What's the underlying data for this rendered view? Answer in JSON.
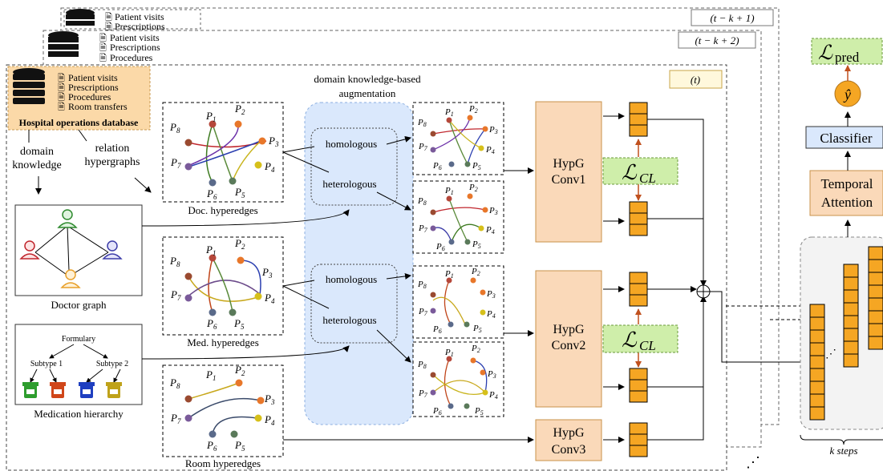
{
  "frames": [
    {
      "label": "(t − k + 1)",
      "items": [
        "Patient visits",
        "Prescriptions"
      ]
    },
    {
      "label": "(t − k + 2)",
      "items": [
        "Patient visits",
        "Prescriptions",
        "Procedures"
      ]
    },
    {
      "label": "(t)",
      "items": [
        "Patient visits",
        "Prescriptions",
        "Procedures",
        "Room transfers"
      ]
    }
  ],
  "database": {
    "title": "Hospital operations database"
  },
  "inputs": {
    "domain_knowledge": [
      "domain",
      "knowledge"
    ],
    "relation_hypergraphs": [
      "relation",
      "hypergraphs"
    ]
  },
  "doctor_graph": {
    "caption": "Doctor graph"
  },
  "medication_hierarchy": {
    "caption": "Medication hierarchy",
    "root": "Formulary",
    "subtype1": "Subtype 1",
    "subtype2": "Subtype 2"
  },
  "augmentation": {
    "title": [
      "domain knowledge-based",
      "augmentation"
    ],
    "homologous": "homologous",
    "heterologous": "heterologous"
  },
  "hyperedges": {
    "doc": "Doc. hyperedges",
    "med": "Med. hyperedges",
    "room": "Room hyperedges"
  },
  "convs": [
    {
      "line1": "HypG",
      "line2": "Conv1"
    },
    {
      "line1": "HypG",
      "line2": "Conv2"
    },
    {
      "line1": "HypG",
      "line2": "Conv3"
    }
  ],
  "losses": {
    "cl": "CL",
    "pred": "pred"
  },
  "heads": {
    "classifier": "Classifier",
    "temporal": [
      "Temporal",
      "Attention"
    ],
    "yhat": "ŷ"
  },
  "steps": "k steps",
  "colors": {
    "database_fill": "#fbd9a8",
    "aug_fill": "#dae8fc",
    "conv_fill": "#fad9b9",
    "loss_fill": "#cfeeaa",
    "embed_fill": "#f5a623",
    "classifier_fill": "#dae8fc",
    "arrow_red": "#c0501e"
  }
}
